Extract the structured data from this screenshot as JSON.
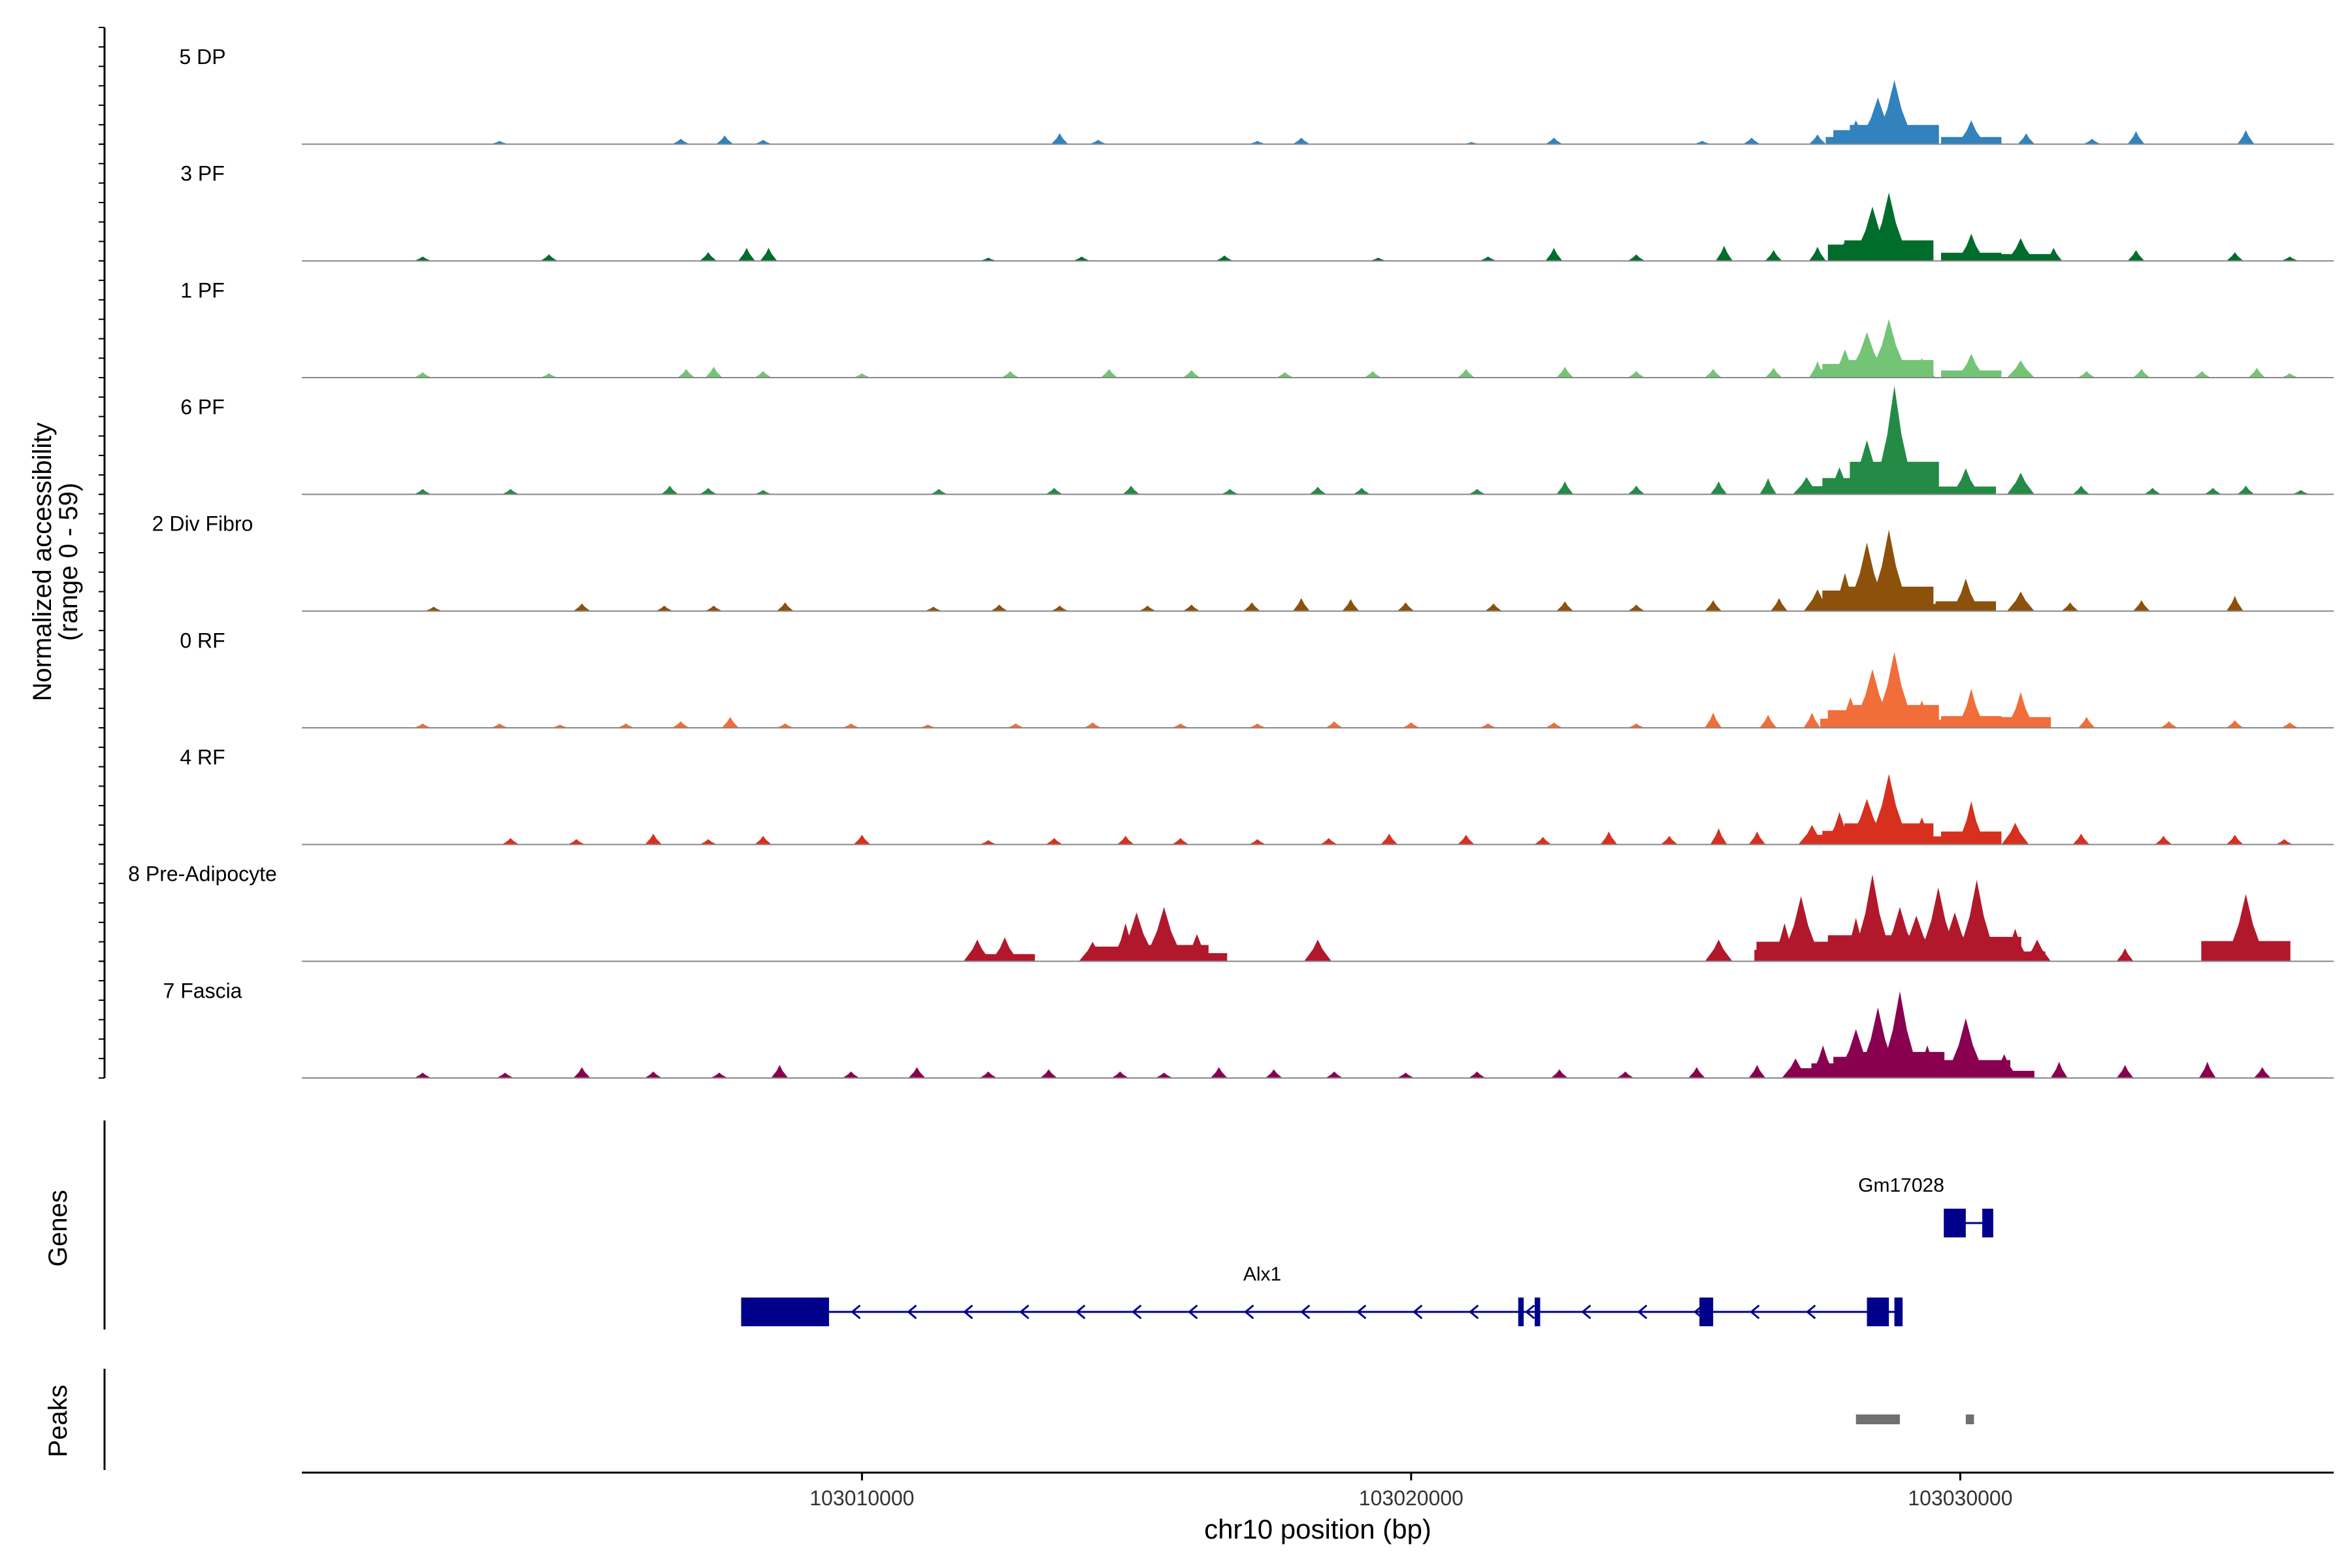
{
  "chart_data": {
    "type": "area",
    "ylabel_line1": "Normalized accessibility",
    "ylabel_line2": "(range 0 - 59)",
    "ylim": [
      0,
      59
    ],
    "xlabel": "chr10 position (bp)",
    "xlim": [
      102999800,
      103036800
    ],
    "xticks": [
      {
        "value": 103010000,
        "label": "103010000"
      },
      {
        "value": 103020000,
        "label": "103020000"
      },
      {
        "value": 103030000,
        "label": "103030000"
      }
    ],
    "series": [
      {
        "name": "5 DP",
        "color": "#3182bd",
        "peaks": [
          [
            103003400,
            3
          ],
          [
            103006700,
            5
          ],
          [
            103007500,
            8
          ],
          [
            103008200,
            4
          ],
          [
            103013600,
            10
          ],
          [
            103014300,
            4
          ],
          [
            103017200,
            3
          ],
          [
            103018000,
            6
          ],
          [
            103021100,
            2
          ],
          [
            103022600,
            6
          ],
          [
            103025300,
            3
          ],
          [
            103026200,
            6
          ],
          [
            103027400,
            9
          ],
          [
            103028100,
            22
          ],
          [
            103028500,
            43
          ],
          [
            103028800,
            59
          ],
          [
            103029300,
            12
          ],
          [
            103030200,
            22
          ],
          [
            103031200,
            10
          ],
          [
            103032400,
            5
          ],
          [
            103033200,
            12
          ],
          [
            103035200,
            13
          ]
        ]
      },
      {
        "name": "3 PF",
        "color": "#006d2c",
        "peaks": [
          [
            103002000,
            4
          ],
          [
            103004300,
            6
          ],
          [
            103007200,
            8
          ],
          [
            103007900,
            12
          ],
          [
            103008300,
            12
          ],
          [
            103012300,
            3
          ],
          [
            103014000,
            4
          ],
          [
            103016600,
            5
          ],
          [
            103019400,
            3
          ],
          [
            103021400,
            4
          ],
          [
            103022600,
            12
          ],
          [
            103024100,
            6
          ],
          [
            103025700,
            14
          ],
          [
            103026600,
            10
          ],
          [
            103027400,
            13
          ],
          [
            103027900,
            18
          ],
          [
            103028400,
            50
          ],
          [
            103028700,
            63
          ],
          [
            103029300,
            14
          ],
          [
            103030200,
            25
          ],
          [
            103031100,
            21
          ],
          [
            103031700,
            12
          ],
          [
            103033200,
            10
          ],
          [
            103035000,
            8
          ],
          [
            103036000,
            4
          ]
        ]
      },
      {
        "name": "1 PF",
        "color": "#74c476",
        "peaks": [
          [
            103002000,
            5
          ],
          [
            103004300,
            4
          ],
          [
            103006800,
            8
          ],
          [
            103007300,
            10
          ],
          [
            103008200,
            6
          ],
          [
            103010000,
            4
          ],
          [
            103012700,
            6
          ],
          [
            103014500,
            8
          ],
          [
            103016000,
            7
          ],
          [
            103017700,
            5
          ],
          [
            103019300,
            6
          ],
          [
            103021000,
            8
          ],
          [
            103022800,
            10
          ],
          [
            103024100,
            6
          ],
          [
            103025500,
            8
          ],
          [
            103026600,
            9
          ],
          [
            103027400,
            15
          ],
          [
            103027900,
            26
          ],
          [
            103028300,
            42
          ],
          [
            103028700,
            54
          ],
          [
            103029300,
            18
          ],
          [
            103030200,
            22
          ],
          [
            103031100,
            16
          ],
          [
            103032300,
            6
          ],
          [
            103033300,
            8
          ],
          [
            103034400,
            6
          ],
          [
            103035400,
            9
          ],
          [
            103036000,
            4
          ]
        ]
      },
      {
        "name": "6 PF",
        "color": "#238b45",
        "peaks": [
          [
            103002000,
            5
          ],
          [
            103003600,
            5
          ],
          [
            103006500,
            8
          ],
          [
            103007200,
            6
          ],
          [
            103008200,
            4
          ],
          [
            103011400,
            5
          ],
          [
            103013500,
            6
          ],
          [
            103014900,
            8
          ],
          [
            103016700,
            5
          ],
          [
            103018300,
            7
          ],
          [
            103019100,
            6
          ],
          [
            103021200,
            5
          ],
          [
            103022800,
            12
          ],
          [
            103024100,
            8
          ],
          [
            103025600,
            12
          ],
          [
            103026500,
            15
          ],
          [
            103027200,
            16
          ],
          [
            103027800,
            25
          ],
          [
            103028300,
            50
          ],
          [
            103028800,
            100
          ],
          [
            103029300,
            22
          ],
          [
            103030100,
            24
          ],
          [
            103031100,
            20
          ],
          [
            103032200,
            8
          ],
          [
            103033500,
            6
          ],
          [
            103034600,
            6
          ],
          [
            103035200,
            8
          ],
          [
            103036200,
            4
          ]
        ]
      },
      {
        "name": "2 Div Fibro",
        "color": "#8c510a",
        "peaks": [
          [
            103002200,
            4
          ],
          [
            103004900,
            7
          ],
          [
            103006400,
            5
          ],
          [
            103007300,
            5
          ],
          [
            103008600,
            8
          ],
          [
            103011300,
            4
          ],
          [
            103012500,
            6
          ],
          [
            103013600,
            5
          ],
          [
            103015200,
            5
          ],
          [
            103016000,
            6
          ],
          [
            103017100,
            8
          ],
          [
            103018000,
            12
          ],
          [
            103018900,
            11
          ],
          [
            103019900,
            8
          ],
          [
            103021500,
            7
          ],
          [
            103022800,
            9
          ],
          [
            103024100,
            6
          ],
          [
            103025500,
            10
          ],
          [
            103026700,
            12
          ],
          [
            103027400,
            20
          ],
          [
            103027900,
            35
          ],
          [
            103028300,
            63
          ],
          [
            103028700,
            75
          ],
          [
            103029200,
            22
          ],
          [
            103030100,
            30
          ],
          [
            103031100,
            18
          ],
          [
            103032000,
            8
          ],
          [
            103033300,
            10
          ],
          [
            103035000,
            14
          ]
        ]
      },
      {
        "name": "0 RF",
        "color": "#f16d3a",
        "peaks": [
          [
            103002000,
            4
          ],
          [
            103003400,
            4
          ],
          [
            103004500,
            3
          ],
          [
            103005700,
            4
          ],
          [
            103006700,
            6
          ],
          [
            103007600,
            10
          ],
          [
            103008600,
            4
          ],
          [
            103009800,
            4
          ],
          [
            103011200,
            3
          ],
          [
            103012800,
            4
          ],
          [
            103014200,
            5
          ],
          [
            103015800,
            4
          ],
          [
            103017200,
            4
          ],
          [
            103018600,
            6
          ],
          [
            103020000,
            5
          ],
          [
            103021400,
            4
          ],
          [
            103022600,
            5
          ],
          [
            103024100,
            4
          ],
          [
            103025500,
            14
          ],
          [
            103026500,
            12
          ],
          [
            103027300,
            14
          ],
          [
            103028000,
            28
          ],
          [
            103028400,
            54
          ],
          [
            103028800,
            70
          ],
          [
            103029300,
            25
          ],
          [
            103030200,
            36
          ],
          [
            103031100,
            33
          ],
          [
            103032300,
            10
          ],
          [
            103033800,
            6
          ],
          [
            103035000,
            7
          ],
          [
            103036000,
            5
          ]
        ]
      },
      {
        "name": "4 RF",
        "color": "#d7301f",
        "peaks": [
          [
            103003600,
            6
          ],
          [
            103004800,
            5
          ],
          [
            103006200,
            10
          ],
          [
            103007200,
            5
          ],
          [
            103008200,
            8
          ],
          [
            103010000,
            9
          ],
          [
            103012300,
            4
          ],
          [
            103013500,
            6
          ],
          [
            103014800,
            8
          ],
          [
            103015800,
            6
          ],
          [
            103017200,
            5
          ],
          [
            103018500,
            6
          ],
          [
            103019600,
            10
          ],
          [
            103021000,
            9
          ],
          [
            103022400,
            7
          ],
          [
            103023600,
            12
          ],
          [
            103024700,
            8
          ],
          [
            103025600,
            15
          ],
          [
            103026300,
            12
          ],
          [
            103027300,
            18
          ],
          [
            103027800,
            30
          ],
          [
            103028300,
            42
          ],
          [
            103028700,
            65
          ],
          [
            103029300,
            25
          ],
          [
            103030200,
            40
          ],
          [
            103031000,
            20
          ],
          [
            103032200,
            10
          ],
          [
            103033700,
            8
          ],
          [
            103035000,
            9
          ],
          [
            103035900,
            5
          ]
        ]
      },
      {
        "name": "8 Pre-Adipocyte",
        "color": "#b2182b",
        "peaks": [
          [
            103012100,
            20
          ],
          [
            103012600,
            22
          ],
          [
            103014200,
            18
          ],
          [
            103014800,
            35
          ],
          [
            103015000,
            45
          ],
          [
            103015500,
            50
          ],
          [
            103016100,
            25
          ],
          [
            103018300,
            20
          ],
          [
            103025600,
            20
          ],
          [
            103026800,
            35
          ],
          [
            103027100,
            60
          ],
          [
            103027700,
            22
          ],
          [
            103028100,
            40
          ],
          [
            103028400,
            80
          ],
          [
            103028900,
            50
          ],
          [
            103029200,
            42
          ],
          [
            103029600,
            68
          ],
          [
            103029900,
            45
          ],
          [
            103030300,
            75
          ],
          [
            103031000,
            30
          ],
          [
            103031400,
            20
          ],
          [
            103033000,
            12
          ],
          [
            103034800,
            18
          ],
          [
            103035200,
            62
          ],
          [
            103035600,
            14
          ]
        ]
      },
      {
        "name": "7 Fascia",
        "color": "#8a0051",
        "peaks": [
          [
            103002000,
            5
          ],
          [
            103003500,
            5
          ],
          [
            103004900,
            10
          ],
          [
            103006200,
            6
          ],
          [
            103007400,
            5
          ],
          [
            103008500,
            12
          ],
          [
            103009800,
            6
          ],
          [
            103011000,
            10
          ],
          [
            103012300,
            6
          ],
          [
            103013400,
            8
          ],
          [
            103014700,
            6
          ],
          [
            103015500,
            5
          ],
          [
            103016500,
            10
          ],
          [
            103017500,
            8
          ],
          [
            103018600,
            6
          ],
          [
            103019900,
            5
          ],
          [
            103021200,
            6
          ],
          [
            103022700,
            8
          ],
          [
            103023900,
            6
          ],
          [
            103025200,
            10
          ],
          [
            103026300,
            12
          ],
          [
            103027000,
            18
          ],
          [
            103027500,
            30
          ],
          [
            103028100,
            45
          ],
          [
            103028500,
            65
          ],
          [
            103028900,
            80
          ],
          [
            103029400,
            30
          ],
          [
            103030100,
            55
          ],
          [
            103030800,
            22
          ],
          [
            103031800,
            15
          ],
          [
            103033000,
            12
          ],
          [
            103034500,
            15
          ],
          [
            103035500,
            10
          ]
        ]
      }
    ],
    "genes_label": "Genes",
    "genes": [
      {
        "name": "Gm17028",
        "strand": "-",
        "exons": [
          [
            103029700,
            103030100
          ],
          [
            103030400,
            103030600
          ]
        ],
        "line": [
          103029700,
          103030400
        ]
      },
      {
        "name": "Alx1",
        "strand": "-",
        "exons": [
          [
            103007800,
            103009400
          ],
          [
            103021950,
            103022050
          ],
          [
            103022250,
            103022350
          ],
          [
            103025250,
            103025500
          ],
          [
            103028300,
            103028700
          ],
          [
            103028800,
            103028950
          ]
        ],
        "line": [
          103007800,
          103028950
        ]
      }
    ],
    "peaks_label": "Peaks",
    "peak_regions": [
      [
        103028100,
        103028900
      ],
      [
        103030100,
        103030250
      ]
    ]
  }
}
